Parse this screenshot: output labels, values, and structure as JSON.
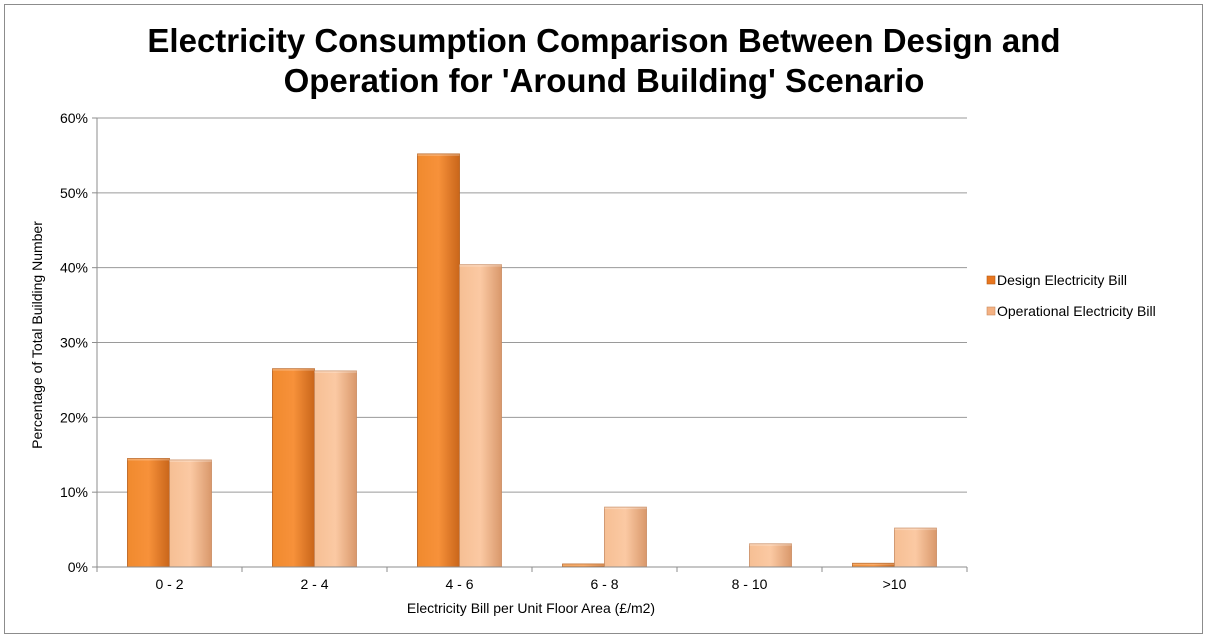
{
  "chart_data": {
    "type": "bar",
    "title_lines": [
      "Electricity Consumption Comparison Between Design and",
      "Operation for 'Around Building' Scenario"
    ],
    "xlabel": "Electricity Bill per Unit Floor Area (£/m2)",
    "ylabel": "Percentage of Total Building Number",
    "categories": [
      "0 - 2",
      "2 - 4",
      "4 - 6",
      "6 - 8",
      "8 - 10",
      ">10"
    ],
    "series": [
      {
        "name": "Design Electricity Bill",
        "values": [
          14.5,
          26.5,
          55.2,
          0.4,
          0.0,
          0.5
        ],
        "color": "#e8761f"
      },
      {
        "name": "Operational Electricity Bill",
        "values": [
          14.3,
          26.2,
          40.4,
          8.0,
          3.1,
          5.2
        ],
        "color": "#f4b183"
      }
    ],
    "ylim": [
      0,
      60
    ],
    "yticks": [
      0,
      10,
      20,
      30,
      40,
      50,
      60
    ],
    "ytick_labels": [
      "0%",
      "10%",
      "20%",
      "30%",
      "40%",
      "50%",
      "60%"
    ],
    "grid": true,
    "legend_position": "right"
  }
}
